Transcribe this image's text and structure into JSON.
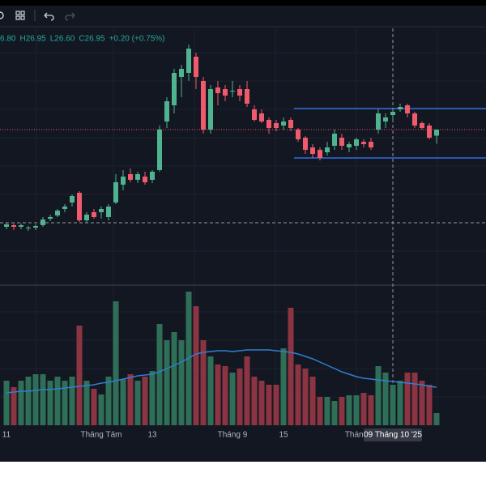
{
  "header": {
    "items": [
      "6.80",
      "H26.95",
      "L26.60",
      "C26.95",
      "+0.20 (+0.75%)"
    ]
  },
  "chart_data": {
    "type": "candlestick",
    "categories": [
      "11",
      null,
      null,
      null,
      null,
      null,
      null,
      null,
      null,
      null,
      null,
      null,
      null,
      "Tháng Tám",
      null,
      null,
      null,
      null,
      null,
      null,
      "13",
      null,
      null,
      null,
      null,
      null,
      null,
      null,
      null,
      null,
      null,
      "Tháng 9",
      null,
      null,
      null,
      null,
      null,
      null,
      "15",
      null,
      null,
      null,
      null,
      null,
      null,
      null,
      null,
      null,
      "Tháng",
      null,
      null,
      null,
      null,
      null,
      null,
      null,
      null,
      null,
      null,
      null
    ],
    "open": [
      24.55,
      24.59,
      24.55,
      24.53,
      24.53,
      24.59,
      24.75,
      24.83,
      24.99,
      25.15,
      25.39,
      24.71,
      24.91,
      24.91,
      24.79,
      25.15,
      25.59,
      25.85,
      25.71,
      25.79,
      25.71,
      25.95,
      27.15,
      27.55,
      28.25,
      28.35,
      28.75,
      28.15,
      26.95,
      27.99,
      27.95,
      27.91,
      27.95,
      27.95,
      27.45,
      27.35,
      27.19,
      27.11,
      27.05,
      27.19,
      26.95,
      26.75,
      26.51,
      26.45,
      26.39,
      26.55,
      26.75,
      26.51,
      26.55,
      26.65,
      26.65,
      26.95,
      27.15,
      27.31,
      27.45,
      27.55,
      27.35,
      27.11,
      27.05,
      26.8
    ],
    "high": [
      24.65,
      24.63,
      24.63,
      24.57,
      24.61,
      24.79,
      24.85,
      24.99,
      25.11,
      25.35,
      25.43,
      24.91,
      24.99,
      25.05,
      25.11,
      25.85,
      25.95,
      25.99,
      25.91,
      25.91,
      25.95,
      27.05,
      27.75,
      28.45,
      28.55,
      29.05,
      28.85,
      28.25,
      28.05,
      28.15,
      28.05,
      28.15,
      28.05,
      28.15,
      27.55,
      27.45,
      27.25,
      27.19,
      27.25,
      27.25,
      26.99,
      26.79,
      26.59,
      26.51,
      26.65,
      26.95,
      26.85,
      26.65,
      26.75,
      26.71,
      26.75,
      27.45,
      27.35,
      27.45,
      27.59,
      27.59,
      27.39,
      27.15,
      27.11,
      26.95
    ],
    "low": [
      24.49,
      24.47,
      24.49,
      24.45,
      24.47,
      24.55,
      24.69,
      24.79,
      24.91,
      25.05,
      24.67,
      24.65,
      24.75,
      24.75,
      24.71,
      25.11,
      25.45,
      25.65,
      25.63,
      25.59,
      25.63,
      25.91,
      26.99,
      27.35,
      27.75,
      28.15,
      27.95,
      26.85,
      26.85,
      27.55,
      27.65,
      27.75,
      27.65,
      27.51,
      27.15,
      27.11,
      26.85,
      26.91,
      26.95,
      26.91,
      26.65,
      26.35,
      26.25,
      26.19,
      26.31,
      26.45,
      26.45,
      26.39,
      26.45,
      26.51,
      26.45,
      26.85,
      26.99,
      27.19,
      27.39,
      27.25,
      26.99,
      26.95,
      26.71,
      26.6
    ],
    "close": [
      24.61,
      24.55,
      24.59,
      24.53,
      24.57,
      24.73,
      24.79,
      24.95,
      25.05,
      25.31,
      24.71,
      24.85,
      24.79,
      24.99,
      25.05,
      25.65,
      25.79,
      25.71,
      25.85,
      25.65,
      25.91,
      26.95,
      27.65,
      28.35,
      28.45,
      28.95,
      28.25,
      26.95,
      27.95,
      27.85,
      27.79,
      27.91,
      27.79,
      27.59,
      27.19,
      27.15,
      26.99,
      26.99,
      27.15,
      26.99,
      26.71,
      26.45,
      26.35,
      26.25,
      26.51,
      26.85,
      26.55,
      26.59,
      26.71,
      26.59,
      26.51,
      27.35,
      27.25,
      27.39,
      27.51,
      27.35,
      27.05,
      26.99,
      26.75,
      26.95
    ],
    "volume": [
      55000,
      47000,
      55000,
      60000,
      63000,
      63000,
      55000,
      60000,
      55000,
      60000,
      123000,
      55000,
      45000,
      38000,
      60000,
      153000,
      57000,
      63000,
      55000,
      60000,
      67000,
      125000,
      105000,
      115000,
      105000,
      165000,
      147000,
      105000,
      85000,
      75000,
      73000,
      65000,
      70000,
      85000,
      60000,
      55000,
      50000,
      50000,
      95000,
      145000,
      75000,
      70000,
      60000,
      35000,
      35000,
      30000,
      35000,
      37000,
      37000,
      40000,
      37000,
      73000,
      65000,
      50000,
      55000,
      65000,
      65000,
      55000,
      50000,
      15000
    ],
    "volume_ma": [
      40000,
      41000,
      42000,
      42000,
      43000,
      44000,
      44000,
      45000,
      46000,
      47000,
      48000,
      49000,
      50000,
      52000,
      53000,
      55000,
      57000,
      59000,
      61000,
      62000,
      63000,
      66000,
      70000,
      74000,
      78000,
      83000,
      88000,
      90000,
      91000,
      92000,
      92000,
      91000,
      92000,
      93000,
      93000,
      93000,
      93000,
      92000,
      91000,
      90000,
      88000,
      85000,
      82000,
      78000,
      74000,
      70000,
      66000,
      63000,
      60000,
      58000,
      57000,
      56000,
      55000,
      54000,
      53000,
      52000,
      51000,
      50000,
      48000,
      47000
    ],
    "ylim": [
      23.11,
      29.45
    ],
    "volume_ylim": [
      0,
      173000
    ],
    "levels": [
      27.47,
      26.25
    ],
    "up_color": "#4fb38f",
    "down_color": "#ef5b6c",
    "volume_up_color": "#2f6f57",
    "volume_down_color": "#8b3442",
    "volume_ma_color": "#2f7fd1",
    "level_color": "#2f6fe0",
    "crosshair": {
      "label": "09 Tháng 10 '25",
      "index": 53,
      "price": 24.65
    }
  }
}
